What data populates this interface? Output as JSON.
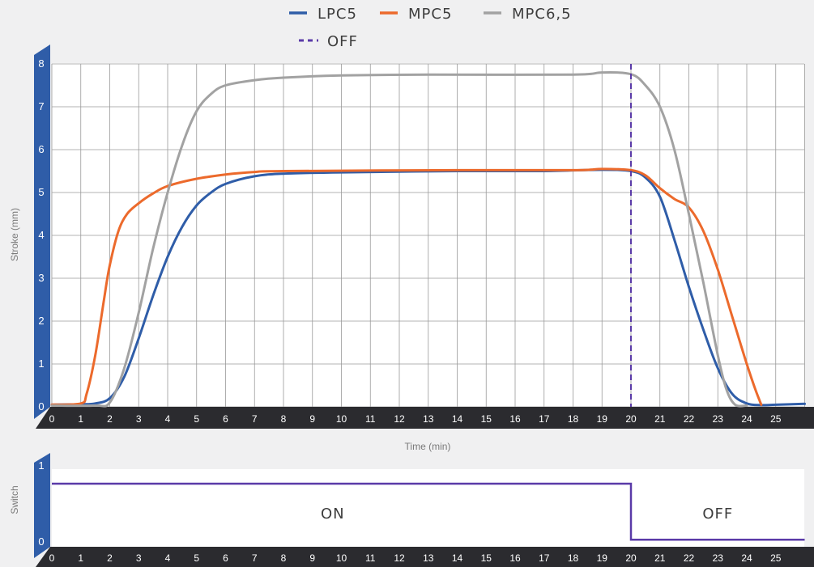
{
  "chart_data": [
    {
      "type": "line",
      "xlabel": "Time (min)",
      "ylabel": "Stroke (mm)",
      "xlim": [
        0,
        26
      ],
      "ylim": [
        0,
        8
      ],
      "x_ticks": [
        0,
        1,
        2,
        3,
        4,
        5,
        6,
        7,
        8,
        9,
        10,
        11,
        12,
        13,
        14,
        15,
        16,
        17,
        18,
        19,
        20,
        21,
        22,
        23,
        24,
        25
      ],
      "y_ticks": [
        0,
        1,
        2,
        3,
        4,
        5,
        6,
        7,
        8
      ],
      "grid": true,
      "legend_position": "top-center",
      "series": [
        {
          "name": "LPC5",
          "color": "#2f5da8",
          "style": "solid",
          "points": [
            [
              0,
              0.05
            ],
            [
              1,
              0.06
            ],
            [
              1.5,
              0.08
            ],
            [
              2,
              0.2
            ],
            [
              2.5,
              0.7
            ],
            [
              3,
              1.6
            ],
            [
              3.5,
              2.6
            ],
            [
              4,
              3.5
            ],
            [
              4.5,
              4.2
            ],
            [
              5,
              4.7
            ],
            [
              5.5,
              5.0
            ],
            [
              6,
              5.2
            ],
            [
              7,
              5.38
            ],
            [
              8,
              5.44
            ],
            [
              10,
              5.47
            ],
            [
              14,
              5.5
            ],
            [
              17,
              5.5
            ],
            [
              19,
              5.53
            ],
            [
              20,
              5.5
            ],
            [
              20.5,
              5.35
            ],
            [
              21,
              4.9
            ],
            [
              21.5,
              3.9
            ],
            [
              22,
              2.8
            ],
            [
              22.5,
              1.8
            ],
            [
              23,
              0.9
            ],
            [
              23.5,
              0.3
            ],
            [
              24,
              0.08
            ],
            [
              24.5,
              0.04
            ],
            [
              25,
              0.05
            ],
            [
              26,
              0.07
            ]
          ]
        },
        {
          "name": "MPC5",
          "color": "#ec6a2c",
          "style": "solid",
          "points": [
            [
              0,
              0.05
            ],
            [
              1,
              0.08
            ],
            [
              1.2,
              0.3
            ],
            [
              1.5,
              1.2
            ],
            [
              1.8,
              2.5
            ],
            [
              2,
              3.3
            ],
            [
              2.3,
              4.1
            ],
            [
              2.6,
              4.5
            ],
            [
              3,
              4.75
            ],
            [
              3.5,
              4.98
            ],
            [
              4,
              5.15
            ],
            [
              5,
              5.32
            ],
            [
              6,
              5.42
            ],
            [
              7,
              5.48
            ],
            [
              8,
              5.5
            ],
            [
              14,
              5.52
            ],
            [
              18,
              5.52
            ],
            [
              19,
              5.55
            ],
            [
              20,
              5.52
            ],
            [
              20.5,
              5.4
            ],
            [
              21,
              5.1
            ],
            [
              21.5,
              4.85
            ],
            [
              22,
              4.65
            ],
            [
              22.5,
              4.1
            ],
            [
              23,
              3.2
            ],
            [
              23.5,
              2.1
            ],
            [
              24,
              1.0
            ],
            [
              24.3,
              0.4
            ],
            [
              24.5,
              0.05
            ]
          ]
        },
        {
          "name": "MPC6,5",
          "color": "#a2a2a2",
          "style": "solid",
          "points": [
            [
              0,
              0.03
            ],
            [
              1.5,
              0.03
            ],
            [
              2,
              0.1
            ],
            [
              2.5,
              0.9
            ],
            [
              3,
              2.2
            ],
            [
              3.5,
              3.7
            ],
            [
              4,
              5.0
            ],
            [
              4.5,
              6.1
            ],
            [
              5,
              6.9
            ],
            [
              5.5,
              7.3
            ],
            [
              6,
              7.5
            ],
            [
              7,
              7.62
            ],
            [
              8,
              7.68
            ],
            [
              10,
              7.73
            ],
            [
              13,
              7.75
            ],
            [
              18,
              7.75
            ],
            [
              19,
              7.8
            ],
            [
              20,
              7.76
            ],
            [
              20.5,
              7.5
            ],
            [
              21,
              7.0
            ],
            [
              21.5,
              6.0
            ],
            [
              22,
              4.5
            ],
            [
              22.5,
              2.9
            ],
            [
              23,
              1.2
            ],
            [
              23.3,
              0.4
            ],
            [
              23.6,
              0.05
            ],
            [
              24,
              0.03
            ]
          ]
        },
        {
          "name": "OFF",
          "color": "#5a3aa8",
          "style": "dashed",
          "points": [
            [
              20,
              0
            ],
            [
              20,
              8
            ]
          ]
        }
      ]
    },
    {
      "type": "line",
      "xlabel": "",
      "ylabel": "Switch",
      "xlim": [
        0,
        26
      ],
      "ylim": [
        0,
        1
      ],
      "x_ticks": [
        0,
        1,
        2,
        3,
        4,
        5,
        6,
        7,
        8,
        9,
        10,
        11,
        12,
        13,
        14,
        15,
        16,
        17,
        18,
        19,
        20,
        21,
        22,
        23,
        24,
        25
      ],
      "y_ticks": [
        0,
        1
      ],
      "series": [
        {
          "color": "#5a3aa8",
          "style": "solid",
          "points": [
            [
              0,
              0.8
            ],
            [
              20,
              0.8
            ],
            [
              20,
              0.03
            ],
            [
              26,
              0.03
            ]
          ]
        }
      ],
      "annotations": [
        {
          "text": "ON",
          "x": 9.7,
          "y": 0.4
        },
        {
          "text": "OFF",
          "x": 23,
          "y": 0.4
        }
      ]
    }
  ]
}
